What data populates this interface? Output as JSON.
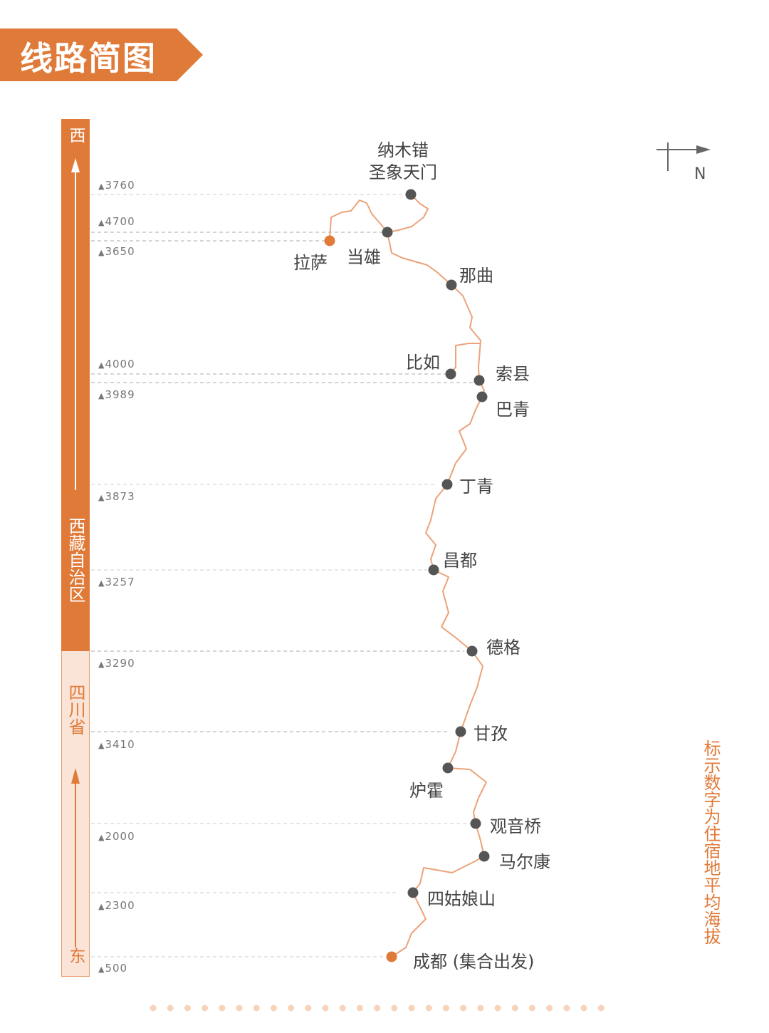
{
  "title": "线路简图",
  "accent_color": "#e07a38",
  "region_bar": {
    "west": "西",
    "east": "东",
    "tibet": "西藏自治区",
    "sichuan": "四川省"
  },
  "north_label": "N",
  "note": "标示数字为住宿地平均海拔",
  "altitudes": [
    "3760",
    "4700",
    "3650",
    "4000",
    "3989",
    "3873",
    "3257",
    "3290",
    "3410",
    "2000",
    "2300",
    "500"
  ],
  "stops": [
    {
      "name": "纳木错",
      "name2": "圣象天门",
      "type": "stop"
    },
    {
      "name": "当雄",
      "type": "stop"
    },
    {
      "name": "拉萨",
      "type": "end"
    },
    {
      "name": "那曲",
      "type": "stop"
    },
    {
      "name": "比如",
      "type": "stop"
    },
    {
      "name": "索县",
      "type": "stop"
    },
    {
      "name": "巴青",
      "type": "stop"
    },
    {
      "name": "丁青",
      "type": "stop"
    },
    {
      "name": "昌都",
      "type": "stop"
    },
    {
      "name": "德格",
      "type": "stop"
    },
    {
      "name": "甘孜",
      "type": "stop"
    },
    {
      "name": "炉霍",
      "type": "stop"
    },
    {
      "name": "观音桥",
      "type": "stop"
    },
    {
      "name": "马尔康",
      "type": "stop"
    },
    {
      "name": "四姑娘山",
      "type": "stop"
    },
    {
      "name": "成都 (集合出发)",
      "type": "start"
    }
  ]
}
